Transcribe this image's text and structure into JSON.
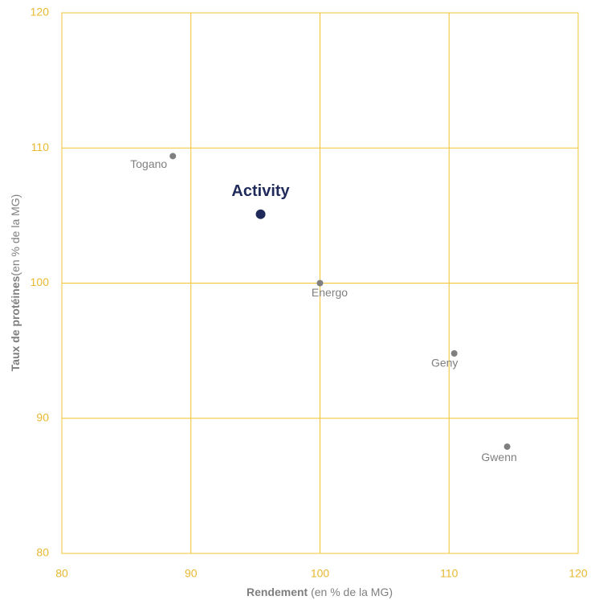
{
  "chart_data": {
    "type": "scatter",
    "x_label_bold": "Rendement",
    "x_label_rest": " (en % de la MG)",
    "y_label_bold": "Taux de protéines",
    "y_label_rest": "(en % de la MG)",
    "labels": [
      "Togano",
      "Activity",
      "Energo",
      "Geny",
      "Gwenn"
    ],
    "x": [
      88.6,
      95.4,
      100.0,
      110.4,
      114.5
    ],
    "y": [
      109.4,
      105.1,
      100.0,
      94.8,
      87.9
    ],
    "colors": [
      "#7f7f7f",
      "#1f2a5a",
      "#7f7f7f",
      "#7f7f7f",
      "#7f7f7f"
    ],
    "highlight_color": "#1f2a5a",
    "xlim": [
      80,
      120
    ],
    "xticks": [
      80,
      90,
      100,
      110,
      120
    ],
    "ylim": [
      80,
      120
    ],
    "yticks": [
      80,
      90,
      100,
      110,
      120
    ],
    "grid": true,
    "grid_color": "#f2c330"
  }
}
